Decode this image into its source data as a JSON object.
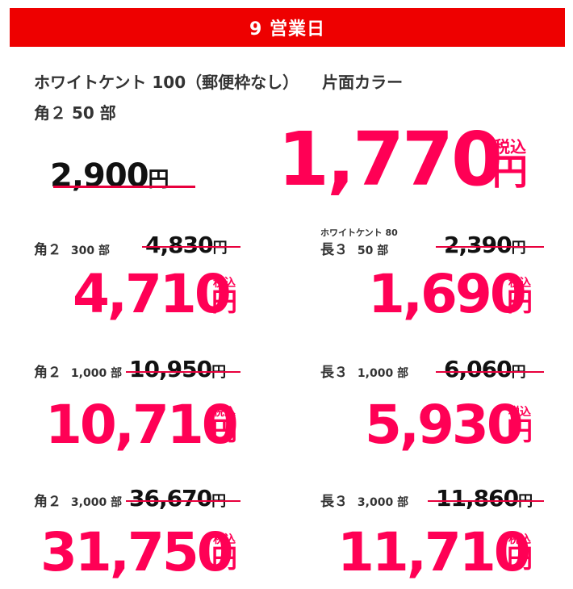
{
  "banner": "9 営業日",
  "product": {
    "name": "ホワイトケント 100（郵便枠なし）",
    "print": "片面カラー"
  },
  "main": {
    "spec": "角２ 50 部",
    "old_price": "2,900",
    "price": "1,770",
    "yen": "円",
    "tax": "税込"
  },
  "colors": {
    "accent": "#ff0055",
    "banner": "#ee0000",
    "strike": "#e8003d"
  },
  "items": [
    {
      "size": "角２",
      "qty": "300 部",
      "old_price": "4,830",
      "price": "4,710",
      "yen": "円",
      "tax": "税込"
    },
    {
      "note": "ホワイトケント 80",
      "size": "長３",
      "qty": "50 部",
      "old_price": "2,390",
      "price": "1,690",
      "yen": "円",
      "tax": "税込"
    },
    {
      "size": "角２",
      "qty": "1,000 部",
      "old_price": "10,950",
      "price": "10,710",
      "yen": "円",
      "tax": "税込"
    },
    {
      "size": "長３",
      "qty": "1,000 部",
      "old_price": "6,060",
      "price": "5,930",
      "yen": "円",
      "tax": "税込"
    },
    {
      "size": "角２",
      "qty": "3,000 部",
      "old_price": "36,670",
      "price": "31,750",
      "yen": "円",
      "tax": "税込"
    },
    {
      "size": "長３",
      "qty": "3,000 部",
      "old_price": "11,860",
      "price": "11,710",
      "yen": "円",
      "tax": "税込"
    }
  ]
}
